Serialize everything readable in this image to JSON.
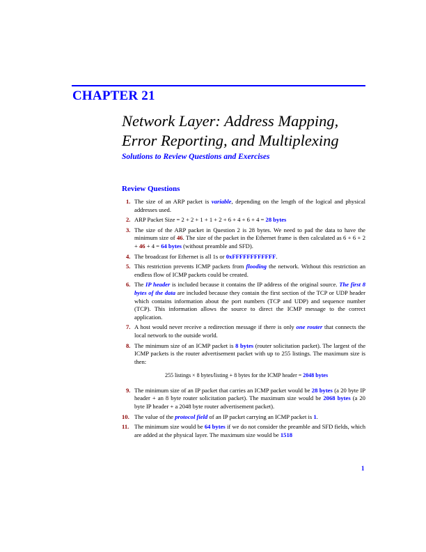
{
  "header": {
    "chapter_label": "CHAPTER 21",
    "title_line1": "Network Layer: Address Mapping,",
    "title_line2": "Error Reporting, and Multiplexing",
    "subtitle": "Solutions to Review Questions and Exercises"
  },
  "section": {
    "heading": "Review Questions"
  },
  "items": [
    {
      "num": "1.",
      "parts": [
        "The size of an ARP packet is ",
        "variable",
        ", depending on the length of the logical and physical addresses used."
      ]
    },
    {
      "num": "2.",
      "parts": [
        "ARP Packet Size = 2 + 2 + 1 + 1 + 2 + 6 + 4 + 6 + 4 = ",
        "28 bytes"
      ]
    },
    {
      "num": "3.",
      "parts": [
        "The size of the ARP packet in Question 2 is 28 bytes. We need to pad the data to have the minimum size of ",
        "46",
        ". The size of the packet in the Ethernet frame is then calculated as 6 + 6 + 2 + ",
        "46",
        " + 4 = ",
        "64 bytes",
        " (without preamble and SFD)."
      ]
    },
    {
      "num": "4.",
      "parts": [
        "The broadcast for Ethernet is all 1s or ",
        "0xFFFFFFFFFFFF",
        "."
      ]
    },
    {
      "num": "5.",
      "parts": [
        "This restriction prevents ICMP packets from ",
        "flooding",
        " the network. Without this restriction an endless flow of ICMP packets could be created."
      ]
    },
    {
      "num": "6.",
      "parts": [
        "The ",
        "IP header",
        " is included because it contains the IP address of the original source. ",
        "The first 8 bytes of the data",
        " are included because they contain the first section of the TCP or UDP header which contains information about the port numbers (TCP and UDP) and sequence number (TCP). This information allows the source to direct the ICMP message to the correct application."
      ]
    },
    {
      "num": "7.",
      "parts": [
        "A host would never receive a redirection message if there is only ",
        "one router",
        " that connects the local network to the outside world."
      ]
    },
    {
      "num": "8.",
      "parts": [
        "The minimum size of an ICMP packet is ",
        "8 bytes",
        " (router solicitation packet). The largest of the ICMP packets is the router advertisement packet with up to 255 listings. The maximum size is then:"
      ],
      "formula": [
        "255 listings × 8 bytes/listing + 8 bytes for the ICMP header = ",
        "2048 bytes"
      ]
    },
    {
      "num": "9.",
      "parts": [
        "The minimum size of an IP packet that carries an ICMP packet would be ",
        "28 bytes",
        " (a 20 byte IP header + an 8 byte router solicitation packet). The maximum size would be ",
        "2068 bytes",
        " (a 20 byte IP header + a 2048 byte router advertisement packet)."
      ]
    },
    {
      "num": "10.",
      "parts": [
        "The value of the ",
        "protocol field",
        " of an IP packet carrying an ICMP packet is ",
        "1",
        "."
      ]
    },
    {
      "num": "11.",
      "parts": [
        "The minimum size would be ",
        "64 bytes",
        " if we do not consider the preamble and SFD fields, which are added at the physical layer. The maximum size would be ",
        "1518"
      ]
    }
  ],
  "footer": {
    "page_number": "1"
  },
  "colors": {
    "accent_blue": "#0000ff",
    "number_red": "#8b0000",
    "text": "#000000"
  }
}
